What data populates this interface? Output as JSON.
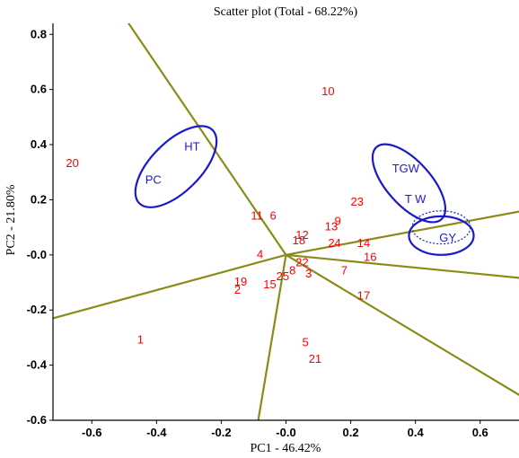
{
  "chart_data": {
    "type": "scatter",
    "title": "Scatter plot (Total - 68.22%)",
    "xlabel": "PC1 - 46.42%",
    "ylabel": "PC2 - 21.80%",
    "xlim": [
      -0.72,
      0.72
    ],
    "ylim": [
      -0.6,
      0.84
    ],
    "x_ticks": [
      {
        "v": -0.6,
        "label": "-0.6"
      },
      {
        "v": -0.4,
        "label": "-0.4"
      },
      {
        "v": -0.2,
        "label": "-0.2"
      },
      {
        "v": 0.0,
        "label": "-0.0"
      },
      {
        "v": 0.2,
        "label": "0.2"
      },
      {
        "v": 0.4,
        "label": "0.4"
      },
      {
        "v": 0.6,
        "label": "0.6"
      }
    ],
    "y_ticks": [
      {
        "v": 0.8,
        "label": "0.8"
      },
      {
        "v": 0.6,
        "label": "0.6"
      },
      {
        "v": 0.4,
        "label": "0.4"
      },
      {
        "v": 0.2,
        "label": "0.2"
      },
      {
        "v": 0.0,
        "label": "-0.0"
      },
      {
        "v": -0.2,
        "label": "-0.2"
      },
      {
        "v": -0.4,
        "label": "-0.4"
      },
      {
        "v": -0.6,
        "label": "-0.6"
      }
    ],
    "points": [
      {
        "label": "1",
        "x": -0.45,
        "y": -0.31
      },
      {
        "label": "2",
        "x": -0.15,
        "y": -0.13
      },
      {
        "label": "3",
        "x": 0.07,
        "y": -0.07
      },
      {
        "label": "4",
        "x": -0.08,
        "y": 0.0
      },
      {
        "label": "5",
        "x": 0.06,
        "y": -0.32
      },
      {
        "label": "6",
        "x": -0.04,
        "y": 0.14
      },
      {
        "label": "7",
        "x": 0.18,
        "y": -0.06
      },
      {
        "label": "8",
        "x": 0.02,
        "y": -0.06
      },
      {
        "label": "9",
        "x": 0.16,
        "y": 0.12
      },
      {
        "label": "10",
        "x": 0.13,
        "y": 0.59
      },
      {
        "label": "11",
        "x": -0.09,
        "y": 0.14
      },
      {
        "label": "12",
        "x": 0.05,
        "y": 0.07
      },
      {
        "label": "13",
        "x": 0.14,
        "y": 0.1
      },
      {
        "label": "14",
        "x": 0.24,
        "y": 0.04
      },
      {
        "label": "15",
        "x": -0.05,
        "y": -0.11
      },
      {
        "label": "16",
        "x": 0.26,
        "y": -0.01
      },
      {
        "label": "17",
        "x": 0.24,
        "y": -0.15
      },
      {
        "label": "18",
        "x": 0.04,
        "y": 0.05
      },
      {
        "label": "19",
        "x": -0.14,
        "y": -0.1
      },
      {
        "label": "20",
        "x": -0.66,
        "y": 0.33
      },
      {
        "label": "21",
        "x": 0.09,
        "y": -0.38
      },
      {
        "label": "22",
        "x": 0.05,
        "y": -0.03
      },
      {
        "label": "23",
        "x": 0.22,
        "y": 0.19
      },
      {
        "label": "24",
        "x": 0.15,
        "y": 0.04
      },
      {
        "label": "25",
        "x": -0.01,
        "y": -0.08
      }
    ],
    "traits": [
      {
        "label": "HT",
        "x": -0.29,
        "y": 0.39
      },
      {
        "label": "PC",
        "x": -0.41,
        "y": 0.27
      },
      {
        "label": "TGW",
        "x": 0.37,
        "y": 0.31
      },
      {
        "label": "T W",
        "x": 0.4,
        "y": 0.2
      },
      {
        "label": "GY",
        "x": 0.5,
        "y": 0.06
      }
    ],
    "trait_groups": [
      {
        "members": [
          "HT",
          "PC"
        ],
        "cx": -0.34,
        "cy": 0.32,
        "rx": 0.16,
        "ry": 0.09,
        "angle_deg": -45,
        "style": "solid"
      },
      {
        "members": [
          "TGW",
          "T W"
        ],
        "cx": 0.38,
        "cy": 0.26,
        "rx": 0.15,
        "ry": 0.08,
        "angle_deg": 48,
        "style": "solid"
      },
      {
        "members": [
          "GY"
        ],
        "cx": 0.48,
        "cy": 0.07,
        "rx": 0.1,
        "ry": 0.07,
        "angle_deg": 0,
        "style": "solid"
      },
      {
        "members": [
          "T W",
          "GY"
        ],
        "cx": 0.48,
        "cy": 0.1,
        "rx": 0.09,
        "ry": 0.06,
        "angle_deg": 0,
        "style": "dotted"
      }
    ],
    "sector_rays": [
      [
        -0.55,
        0.95
      ],
      [
        0.78,
        0.17
      ],
      [
        0.78,
        -0.09
      ],
      [
        0.78,
        -0.55
      ],
      [
        -0.1,
        -0.7
      ],
      [
        -0.72,
        -0.23
      ]
    ],
    "grid": false,
    "legend": "none",
    "colors": {
      "points": "#ff0000",
      "traits": "#1a1acc",
      "rays": "#8b8b1a",
      "axes": "#000000"
    }
  }
}
